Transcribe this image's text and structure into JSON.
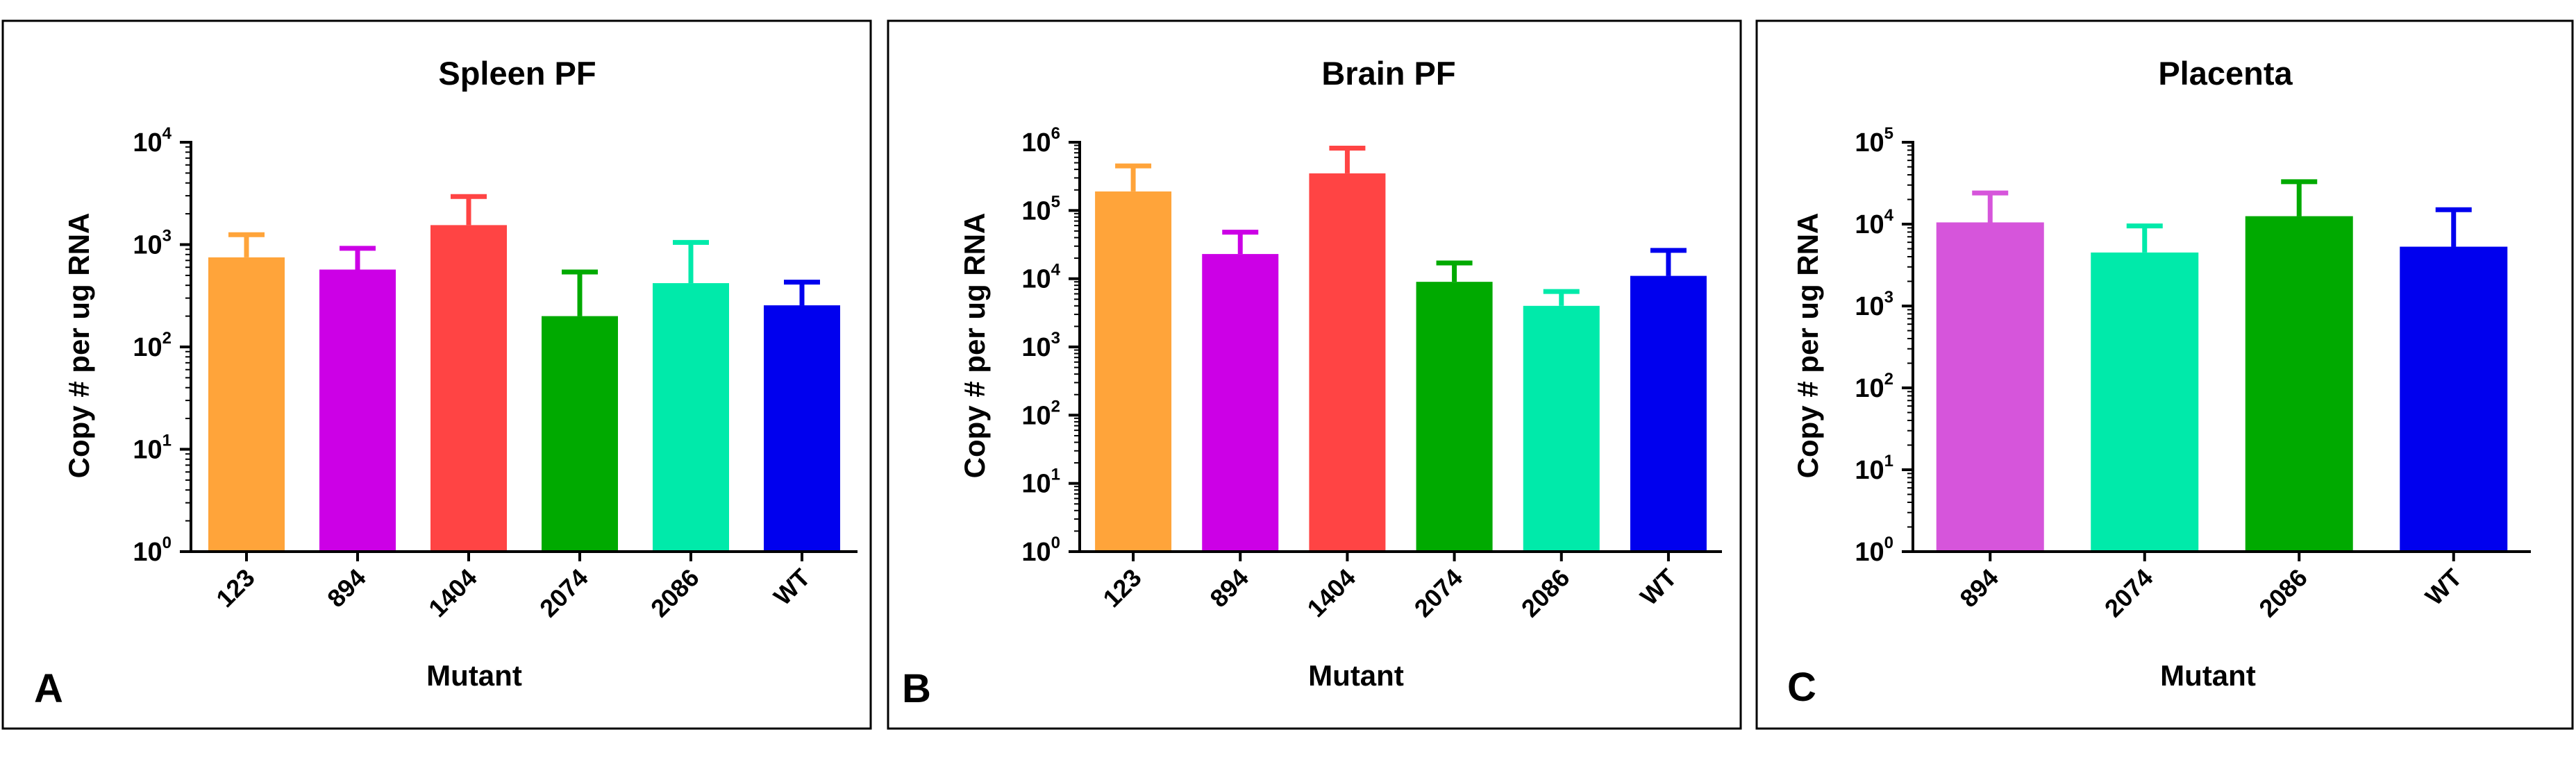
{
  "chart_data": [
    {
      "type": "bar",
      "panel_letter": "A",
      "title": "Spleen PF",
      "xlabel": "Mutant",
      "ylabel": "Copy # per ug RNA",
      "yscale": "log10",
      "ylim": [
        1,
        10000
      ],
      "ytick_base": "10",
      "ytick_exponents": [
        "0",
        "1",
        "2",
        "3",
        "4"
      ],
      "categories": [
        "123",
        "894",
        "1404",
        "2074",
        "2086",
        "WT"
      ],
      "values": [
        750,
        570,
        1550,
        200,
        420,
        255
      ],
      "error_upper": [
        1250,
        920,
        2950,
        540,
        1050,
        430
      ],
      "colors": [
        "#FFA43A",
        "#CC00E6",
        "#FF4444",
        "#00AA00",
        "#00EAAA",
        "#0000EE"
      ]
    },
    {
      "type": "bar",
      "panel_letter": "B",
      "title": "Brain PF",
      "xlabel": "Mutant",
      "ylabel": "Copy # per ug RNA",
      "yscale": "log10",
      "ylim": [
        1,
        1000000
      ],
      "ytick_base": "10",
      "ytick_exponents": [
        "0",
        "1",
        "2",
        "3",
        "4",
        "5",
        "6"
      ],
      "categories": [
        "123",
        "894",
        "1404",
        "2074",
        "2086",
        "WT"
      ],
      "values": [
        190000,
        23000,
        350000,
        9000,
        4000,
        11000
      ],
      "error_upper": [
        450000,
        48000,
        820000,
        17000,
        6500,
        26000
      ],
      "colors": [
        "#FFA43A",
        "#CC00E6",
        "#FF4444",
        "#00AA00",
        "#00EAAA",
        "#0000EE"
      ]
    },
    {
      "type": "bar",
      "panel_letter": "C",
      "title": "Placenta",
      "xlabel": "Mutant",
      "ylabel": "Copy # per ug RNA",
      "yscale": "log10",
      "ylim": [
        1,
        100000
      ],
      "ytick_base": "10",
      "ytick_exponents": [
        "0",
        "1",
        "2",
        "3",
        "4",
        "5"
      ],
      "categories": [
        "894",
        "2074",
        "2086",
        "WT"
      ],
      "values": [
        10500,
        4500,
        12500,
        5300
      ],
      "error_upper": [
        24000,
        9500,
        33000,
        15000
      ],
      "colors": [
        "#D655DB",
        "#00EAAA",
        "#00AA00",
        "#0000EE"
      ]
    }
  ]
}
